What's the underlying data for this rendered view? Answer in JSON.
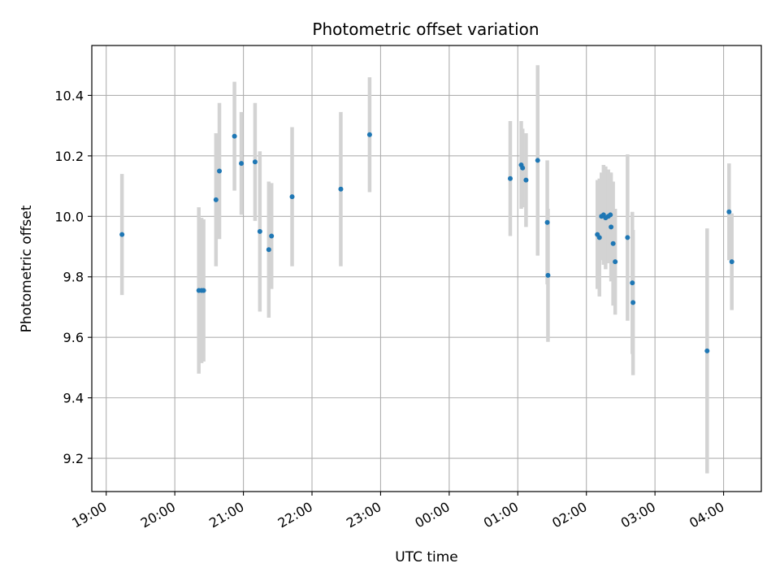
{
  "chart_data": {
    "type": "scatter",
    "title": "Photometric offset variation",
    "xlabel": "UTC time",
    "ylabel": "Photometric offset",
    "x_tick_labels": [
      "19:00",
      "20:00",
      "21:00",
      "22:00",
      "23:00",
      "00:00",
      "01:00",
      "02:00",
      "03:00",
      "04:00"
    ],
    "x_tick_hours": [
      0,
      1,
      2,
      3,
      4,
      5,
      6,
      7,
      8,
      9
    ],
    "x_units": "hours after 19:00 UTC",
    "xlim": [
      -0.21,
      9.55
    ],
    "ylim": [
      9.09,
      10.565
    ],
    "yticks": [
      9.2,
      9.4,
      9.6,
      9.8,
      10.0,
      10.2,
      10.4
    ],
    "grid": true,
    "marker_color": "#1f77b4",
    "errorbar_color": "#d3d3d3",
    "points": [
      {
        "x": 0.23,
        "y": 9.94,
        "err": 0.2
      },
      {
        "x": 1.35,
        "y": 9.755,
        "err": 0.275
      },
      {
        "x": 1.39,
        "y": 9.755,
        "err": 0.24
      },
      {
        "x": 1.42,
        "y": 9.755,
        "err": 0.235
      },
      {
        "x": 1.6,
        "y": 10.055,
        "err": 0.22
      },
      {
        "x": 1.65,
        "y": 10.15,
        "err": 0.225
      },
      {
        "x": 1.87,
        "y": 10.265,
        "err": 0.18
      },
      {
        "x": 1.97,
        "y": 10.175,
        "err": 0.17
      },
      {
        "x": 2.17,
        "y": 10.18,
        "err": 0.195
      },
      {
        "x": 2.24,
        "y": 9.95,
        "err": 0.265
      },
      {
        "x": 2.37,
        "y": 9.89,
        "err": 0.225
      },
      {
        "x": 2.41,
        "y": 9.935,
        "err": 0.175
      },
      {
        "x": 2.71,
        "y": 10.065,
        "err": 0.23
      },
      {
        "x": 3.42,
        "y": 10.09,
        "err": 0.255
      },
      {
        "x": 3.84,
        "y": 10.27,
        "err": 0.19
      },
      {
        "x": 5.89,
        "y": 10.125,
        "err": 0.19
      },
      {
        "x": 6.05,
        "y": 10.17,
        "err": 0.145
      },
      {
        "x": 6.07,
        "y": 10.16,
        "err": 0.13
      },
      {
        "x": 6.12,
        "y": 10.12,
        "err": 0.155
      },
      {
        "x": 6.29,
        "y": 10.185,
        "err": 0.315
      },
      {
        "x": 6.43,
        "y": 9.98,
        "err": 0.205
      },
      {
        "x": 6.44,
        "y": 9.805,
        "err": 0.22
      },
      {
        "x": 7.16,
        "y": 9.94,
        "err": 0.18
      },
      {
        "x": 7.19,
        "y": 9.93,
        "err": 0.195
      },
      {
        "x": 7.22,
        "y": 10.0,
        "err": 0.145
      },
      {
        "x": 7.25,
        "y": 10.005,
        "err": 0.165
      },
      {
        "x": 7.28,
        "y": 9.995,
        "err": 0.17
      },
      {
        "x": 7.32,
        "y": 10.0,
        "err": 0.155
      },
      {
        "x": 7.35,
        "y": 10.005,
        "err": 0.14
      },
      {
        "x": 7.36,
        "y": 9.965,
        "err": 0.18
      },
      {
        "x": 7.39,
        "y": 9.91,
        "err": 0.205
      },
      {
        "x": 7.42,
        "y": 9.85,
        "err": 0.175
      },
      {
        "x": 7.6,
        "y": 9.93,
        "err": 0.275
      },
      {
        "x": 7.67,
        "y": 9.78,
        "err": 0.235
      },
      {
        "x": 7.68,
        "y": 9.715,
        "err": 0.24
      },
      {
        "x": 8.76,
        "y": 9.555,
        "err": 0.405
      },
      {
        "x": 9.08,
        "y": 10.015,
        "err": 0.16
      },
      {
        "x": 9.12,
        "y": 9.85,
        "err": 0.16
      }
    ]
  }
}
